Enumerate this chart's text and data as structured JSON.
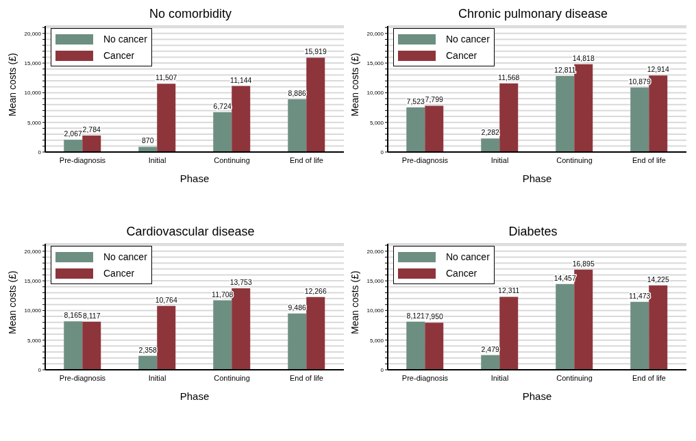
{
  "chart_data": [
    {
      "type": "bar",
      "title": "No comorbidity",
      "xlabel": "Phase",
      "ylabel": "Mean costs (£)",
      "categories": [
        "Pre-diagnosis",
        "Initial",
        "Continuing",
        "End of life"
      ],
      "series": [
        {
          "name": "No cancer",
          "color": "#6d8f82",
          "values": [
            2067,
            870,
            6724,
            8886
          ],
          "value_labels": [
            "2,067",
            "870",
            "6,724",
            "8,886"
          ]
        },
        {
          "name": "Cancer",
          "color": "#8e353c",
          "values": [
            2784,
            11507,
            11144,
            15919
          ],
          "value_labels": [
            "2,784",
            "11,507",
            "11,144",
            "15,919"
          ]
        }
      ],
      "ylim": [
        0,
        21250
      ],
      "yticks": [
        {
          "value": 0,
          "label": "0"
        },
        {
          "value": 1000,
          "label": null
        },
        {
          "value": 2000,
          "label": null
        },
        {
          "value": 3000,
          "label": null
        },
        {
          "value": 4000,
          "label": null
        },
        {
          "value": 5000,
          "label": "5,000"
        },
        {
          "value": 6000,
          "label": null
        },
        {
          "value": 7000,
          "label": null
        },
        {
          "value": 8000,
          "label": null
        },
        {
          "value": 9000,
          "label": null
        },
        {
          "value": 10000,
          "label": "10,000"
        },
        {
          "value": 11000,
          "label": null
        },
        {
          "value": 12000,
          "label": null
        },
        {
          "value": 13000,
          "label": null
        },
        {
          "value": 14000,
          "label": null
        },
        {
          "value": 15000,
          "label": "15,000"
        },
        {
          "value": 16000,
          "label": null
        },
        {
          "value": 17000,
          "label": null
        },
        {
          "value": 18000,
          "label": null
        },
        {
          "value": 19000,
          "label": null
        },
        {
          "value": 20000,
          "label": "20,000"
        },
        {
          "value": 21000,
          "label": null
        }
      ],
      "grid": "y",
      "legend": "top left"
    },
    {
      "type": "bar",
      "title": "Chronic pulmonary disease",
      "xlabel": "Phase",
      "ylabel": "Mean costs (£)",
      "categories": [
        "Pre-diagnosis",
        "Initial",
        "Continuing",
        "End of life"
      ],
      "series": [
        {
          "name": "No cancer",
          "color": "#6d8f82",
          "values": [
            7523,
            2282,
            12811,
            10879
          ],
          "value_labels": [
            "7,523",
            "2,282",
            "12,811",
            "10,879"
          ]
        },
        {
          "name": "Cancer",
          "color": "#8e353c",
          "values": [
            7799,
            11568,
            14818,
            12914
          ],
          "value_labels": [
            "7,799",
            "11,568",
            "14,818",
            "12,914"
          ]
        }
      ],
      "ylim": [
        0,
        21250
      ],
      "yticks": [
        {
          "value": 0,
          "label": "0"
        },
        {
          "value": 1000,
          "label": null
        },
        {
          "value": 2000,
          "label": null
        },
        {
          "value": 3000,
          "label": null
        },
        {
          "value": 4000,
          "label": null
        },
        {
          "value": 5000,
          "label": "5,000"
        },
        {
          "value": 6000,
          "label": null
        },
        {
          "value": 7000,
          "label": null
        },
        {
          "value": 8000,
          "label": null
        },
        {
          "value": 9000,
          "label": null
        },
        {
          "value": 10000,
          "label": "10,000"
        },
        {
          "value": 11000,
          "label": null
        },
        {
          "value": 12000,
          "label": null
        },
        {
          "value": 13000,
          "label": null
        },
        {
          "value": 14000,
          "label": null
        },
        {
          "value": 15000,
          "label": "15,000"
        },
        {
          "value": 16000,
          "label": null
        },
        {
          "value": 17000,
          "label": null
        },
        {
          "value": 18000,
          "label": null
        },
        {
          "value": 19000,
          "label": null
        },
        {
          "value": 20000,
          "label": "20,000"
        },
        {
          "value": 21000,
          "label": null
        }
      ],
      "grid": "y",
      "legend": "top left"
    },
    {
      "type": "bar",
      "title": "Cardiovascular disease",
      "xlabel": "Phase",
      "ylabel": "Mean costs (£)",
      "categories": [
        "Pre-diagnosis",
        "Initial",
        "Continuing",
        "End of life"
      ],
      "series": [
        {
          "name": "No cancer",
          "color": "#6d8f82",
          "values": [
            8165,
            2358,
            11708,
            9486
          ],
          "value_labels": [
            "8,165",
            "2,358",
            "11,708",
            "9,486"
          ]
        },
        {
          "name": "Cancer",
          "color": "#8e353c",
          "values": [
            8117,
            10764,
            13753,
            12266
          ],
          "value_labels": [
            "8,117",
            "10,764",
            "13,753",
            "12,266"
          ]
        }
      ],
      "ylim": [
        0,
        21250
      ],
      "yticks": [
        {
          "value": 0,
          "label": "0"
        },
        {
          "value": 1000,
          "label": null
        },
        {
          "value": 2000,
          "label": null
        },
        {
          "value": 3000,
          "label": null
        },
        {
          "value": 4000,
          "label": null
        },
        {
          "value": 5000,
          "label": "5,000"
        },
        {
          "value": 6000,
          "label": null
        },
        {
          "value": 7000,
          "label": null
        },
        {
          "value": 8000,
          "label": null
        },
        {
          "value": 9000,
          "label": null
        },
        {
          "value": 10000,
          "label": "10,000"
        },
        {
          "value": 11000,
          "label": null
        },
        {
          "value": 12000,
          "label": null
        },
        {
          "value": 13000,
          "label": null
        },
        {
          "value": 14000,
          "label": null
        },
        {
          "value": 15000,
          "label": "15,000"
        },
        {
          "value": 16000,
          "label": null
        },
        {
          "value": 17000,
          "label": null
        },
        {
          "value": 18000,
          "label": null
        },
        {
          "value": 19000,
          "label": null
        },
        {
          "value": 20000,
          "label": "20,000"
        },
        {
          "value": 21000,
          "label": null
        }
      ],
      "grid": "y",
      "legend": "top left"
    },
    {
      "type": "bar",
      "title": "Diabetes",
      "xlabel": "Phase",
      "ylabel": "Mean costs (£)",
      "categories": [
        "Pre-diagnosis",
        "Initial",
        "Continuing",
        "End of life"
      ],
      "series": [
        {
          "name": "No cancer",
          "color": "#6d8f82",
          "values": [
            8121,
            2479,
            14457,
            11473
          ],
          "value_labels": [
            "8,121",
            "2,479",
            "14,457",
            "11,473"
          ]
        },
        {
          "name": "Cancer",
          "color": "#8e353c",
          "values": [
            7950,
            12311,
            16895,
            14225
          ],
          "value_labels": [
            "7,950",
            "12,311",
            "16,895",
            "14,225"
          ]
        }
      ],
      "ylim": [
        0,
        21250
      ],
      "yticks": [
        {
          "value": 0,
          "label": "0"
        },
        {
          "value": 1000,
          "label": null
        },
        {
          "value": 2000,
          "label": null
        },
        {
          "value": 3000,
          "label": null
        },
        {
          "value": 4000,
          "label": null
        },
        {
          "value": 5000,
          "label": "5,000"
        },
        {
          "value": 6000,
          "label": null
        },
        {
          "value": 7000,
          "label": null
        },
        {
          "value": 8000,
          "label": null
        },
        {
          "value": 9000,
          "label": null
        },
        {
          "value": 10000,
          "label": "10,000"
        },
        {
          "value": 11000,
          "label": null
        },
        {
          "value": 12000,
          "label": null
        },
        {
          "value": 13000,
          "label": null
        },
        {
          "value": 14000,
          "label": null
        },
        {
          "value": 15000,
          "label": "15,000"
        },
        {
          "value": 16000,
          "label": null
        },
        {
          "value": 17000,
          "label": null
        },
        {
          "value": 18000,
          "label": null
        },
        {
          "value": 19000,
          "label": null
        },
        {
          "value": 20000,
          "label": "20,000"
        },
        {
          "value": 21000,
          "label": null
        }
      ],
      "grid": "y",
      "legend": "top left"
    }
  ]
}
